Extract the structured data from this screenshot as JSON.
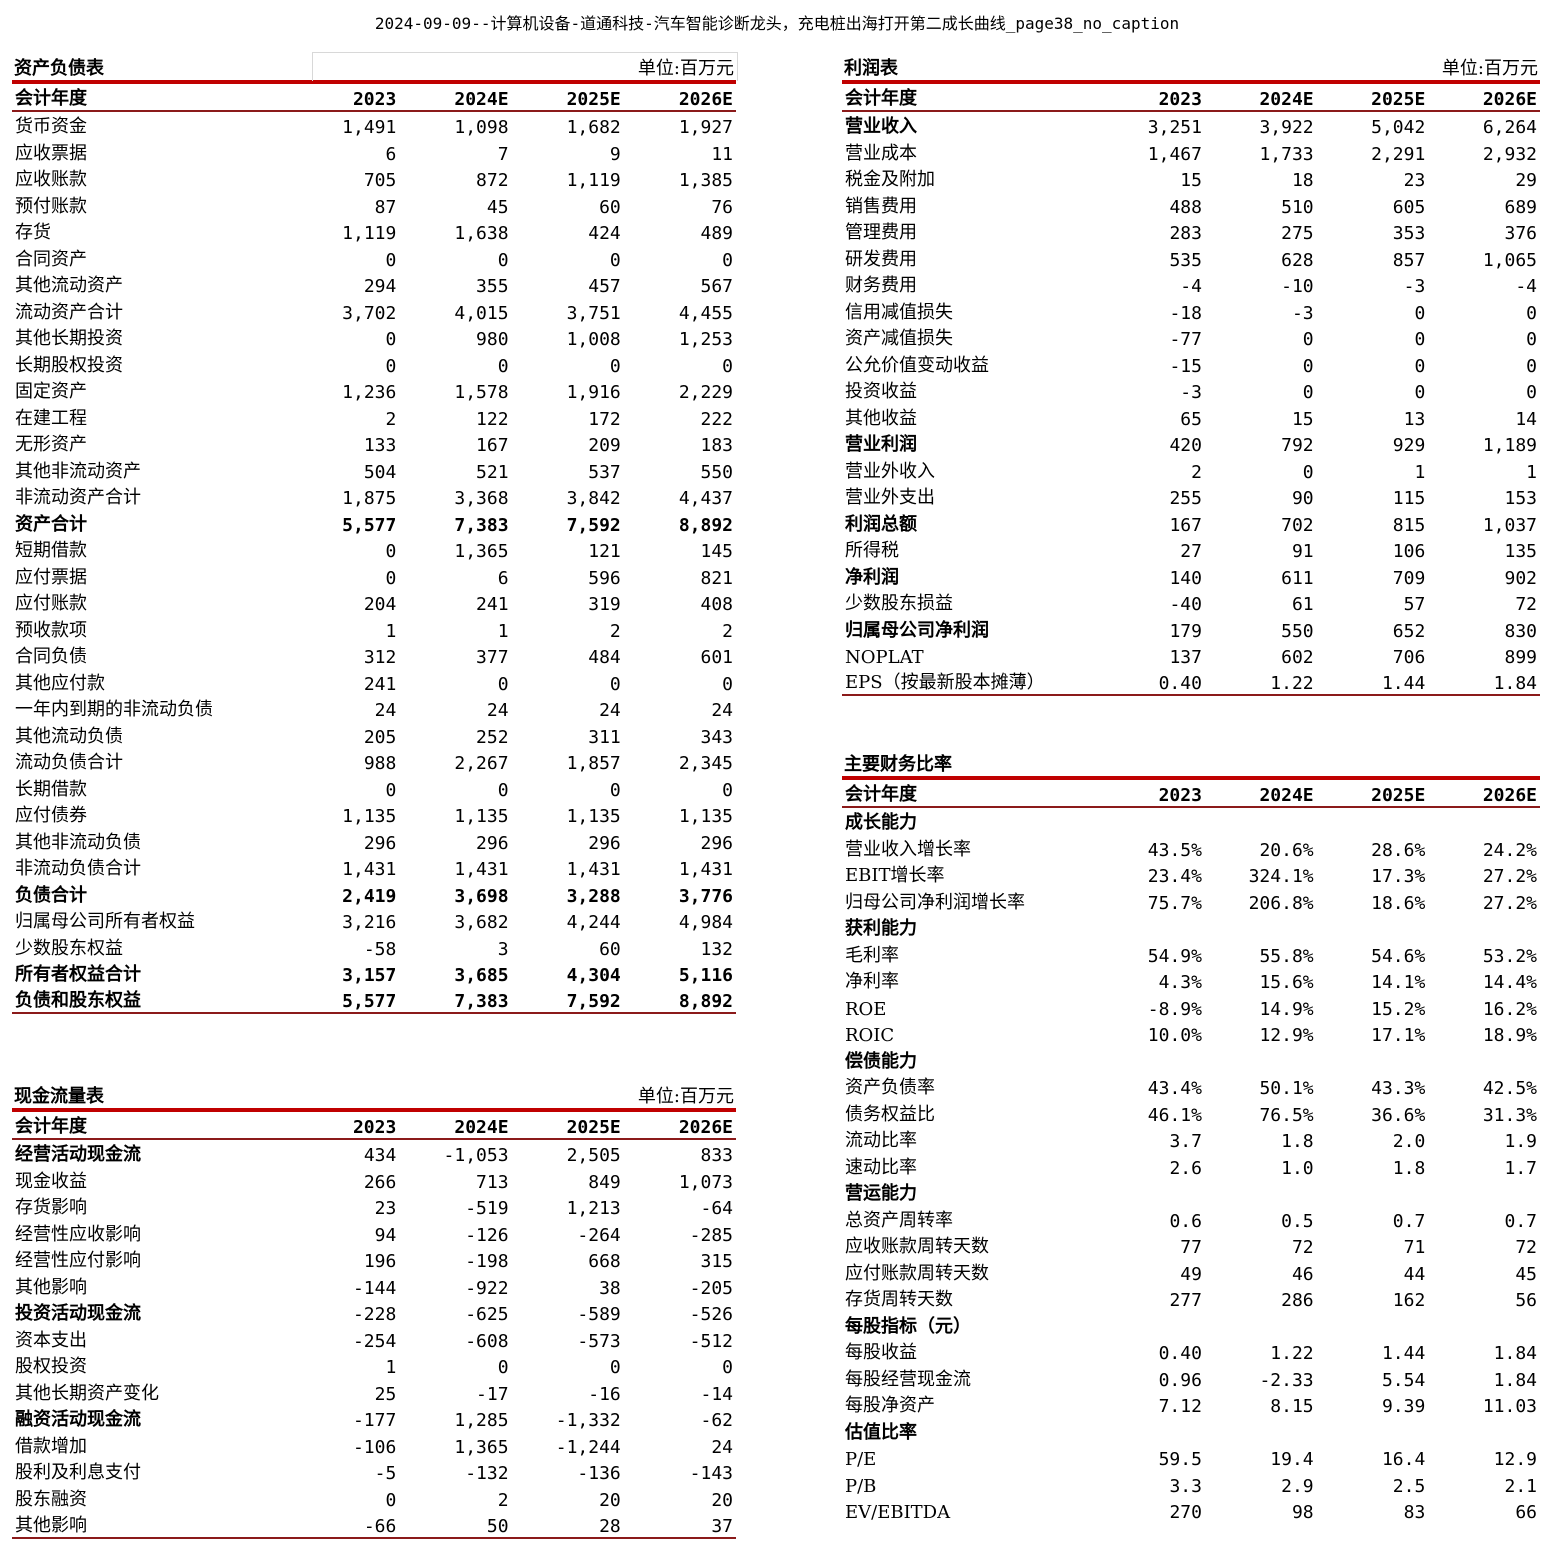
{
  "page_title": "2024-09-09--计算机设备-道通科技-汽车智能诊断龙头，充电桩出海打开第二成长曲线_page38_no_caption",
  "balance": {
    "title": "资产负债表",
    "unit": "单位:百万元",
    "header": [
      "会计年度",
      "2023",
      "2024E",
      "2025E",
      "2026E"
    ],
    "rows": [
      {
        "label": "货币资金",
        "values": [
          "1,491",
          "1,098",
          "1,682",
          "1,927"
        ]
      },
      {
        "label": "应收票据",
        "values": [
          "6",
          "7",
          "9",
          "11"
        ]
      },
      {
        "label": "应收账款",
        "values": [
          "705",
          "872",
          "1,119",
          "1,385"
        ]
      },
      {
        "label": "预付账款",
        "values": [
          "87",
          "45",
          "60",
          "76"
        ]
      },
      {
        "label": "存货",
        "values": [
          "1,119",
          "1,638",
          "424",
          "489"
        ]
      },
      {
        "label": "合同资产",
        "values": [
          "0",
          "0",
          "0",
          "0"
        ]
      },
      {
        "label": "其他流动资产",
        "values": [
          "294",
          "355",
          "457",
          "567"
        ]
      },
      {
        "label": "流动资产合计",
        "values": [
          "3,702",
          "4,015",
          "3,751",
          "4,455"
        ]
      },
      {
        "label": "其他长期投资",
        "values": [
          "0",
          "980",
          "1,008",
          "1,253"
        ]
      },
      {
        "label": "长期股权投资",
        "values": [
          "0",
          "0",
          "0",
          "0"
        ]
      },
      {
        "label": "固定资产",
        "values": [
          "1,236",
          "1,578",
          "1,916",
          "2,229"
        ]
      },
      {
        "label": "在建工程",
        "values": [
          "2",
          "122",
          "172",
          "222"
        ]
      },
      {
        "label": "无形资产",
        "values": [
          "133",
          "167",
          "209",
          "183"
        ]
      },
      {
        "label": "其他非流动资产",
        "values": [
          "504",
          "521",
          "537",
          "550"
        ]
      },
      {
        "label": "非流动资产合计",
        "values": [
          "1,875",
          "3,368",
          "3,842",
          "4,437"
        ]
      },
      {
        "label": "资产合计",
        "values": [
          "5,577",
          "7,383",
          "7,592",
          "8,892"
        ],
        "bold": true
      },
      {
        "label": "短期借款",
        "values": [
          "0",
          "1,365",
          "121",
          "145"
        ]
      },
      {
        "label": "应付票据",
        "values": [
          "0",
          "6",
          "596",
          "821"
        ]
      },
      {
        "label": "应付账款",
        "values": [
          "204",
          "241",
          "319",
          "408"
        ]
      },
      {
        "label": "预收款项",
        "values": [
          "1",
          "1",
          "2",
          "2"
        ]
      },
      {
        "label": "合同负债",
        "values": [
          "312",
          "377",
          "484",
          "601"
        ]
      },
      {
        "label": "其他应付款",
        "values": [
          "241",
          "0",
          "0",
          "0"
        ]
      },
      {
        "label": "一年内到期的非流动负债",
        "values": [
          "24",
          "24",
          "24",
          "24"
        ]
      },
      {
        "label": "其他流动负债",
        "values": [
          "205",
          "252",
          "311",
          "343"
        ]
      },
      {
        "label": "流动负债合计",
        "values": [
          "988",
          "2,267",
          "1,857",
          "2,345"
        ]
      },
      {
        "label": "长期借款",
        "values": [
          "0",
          "0",
          "0",
          "0"
        ]
      },
      {
        "label": "应付债券",
        "values": [
          "1,135",
          "1,135",
          "1,135",
          "1,135"
        ]
      },
      {
        "label": "其他非流动负债",
        "values": [
          "296",
          "296",
          "296",
          "296"
        ]
      },
      {
        "label": "非流动负债合计",
        "values": [
          "1,431",
          "1,431",
          "1,431",
          "1,431"
        ]
      },
      {
        "label": "负债合计",
        "values": [
          "2,419",
          "3,698",
          "3,288",
          "3,776"
        ],
        "bold": true
      },
      {
        "label": "归属母公司所有者权益",
        "values": [
          "3,216",
          "3,682",
          "4,244",
          "4,984"
        ]
      },
      {
        "label": "少数股东权益",
        "values": [
          "-58",
          "3",
          "60",
          "132"
        ]
      },
      {
        "label": "所有者权益合计",
        "values": [
          "3,157",
          "3,685",
          "4,304",
          "5,116"
        ],
        "bold": true
      },
      {
        "label": "负债和股东权益",
        "values": [
          "5,577",
          "7,383",
          "7,592",
          "8,892"
        ],
        "bold": true
      }
    ]
  },
  "cashflow": {
    "title": "现金流量表",
    "unit": "单位:百万元",
    "header": [
      "会计年度",
      "2023",
      "2024E",
      "2025E",
      "2026E"
    ],
    "rows": [
      {
        "label": "经营活动现金流",
        "values": [
          "434",
          "-1,053",
          "2,505",
          "833"
        ],
        "bold_label": true
      },
      {
        "label": "现金收益",
        "values": [
          "266",
          "713",
          "849",
          "1,073"
        ]
      },
      {
        "label": "存货影响",
        "values": [
          "23",
          "-519",
          "1,213",
          "-64"
        ]
      },
      {
        "label": "经营性应收影响",
        "values": [
          "94",
          "-126",
          "-264",
          "-285"
        ]
      },
      {
        "label": "经营性应付影响",
        "values": [
          "196",
          "-198",
          "668",
          "315"
        ]
      },
      {
        "label": "其他影响",
        "values": [
          "-144",
          "-922",
          "38",
          "-205"
        ]
      },
      {
        "label": "投资活动现金流",
        "values": [
          "-228",
          "-625",
          "-589",
          "-526"
        ],
        "bold_label": true
      },
      {
        "label": "资本支出",
        "values": [
          "-254",
          "-608",
          "-573",
          "-512"
        ]
      },
      {
        "label": "股权投资",
        "values": [
          "1",
          "0",
          "0",
          "0"
        ]
      },
      {
        "label": "其他长期资产变化",
        "values": [
          "25",
          "-17",
          "-16",
          "-14"
        ]
      },
      {
        "label": "融资活动现金流",
        "values": [
          "-177",
          "1,285",
          "-1,332",
          "-62"
        ],
        "bold_label": true
      },
      {
        "label": "借款增加",
        "values": [
          "-106",
          "1,365",
          "-1,244",
          "24"
        ]
      },
      {
        "label": "股利及利息支付",
        "values": [
          "-5",
          "-132",
          "-136",
          "-143"
        ]
      },
      {
        "label": "股东融资",
        "values": [
          "0",
          "2",
          "20",
          "20"
        ]
      },
      {
        "label": "其他影响",
        "values": [
          "-66",
          "50",
          "28",
          "37"
        ]
      }
    ]
  },
  "income": {
    "title": "利润表",
    "unit": "单位:百万元",
    "header": [
      "会计年度",
      "2023",
      "2024E",
      "2025E",
      "2026E"
    ],
    "rows": [
      {
        "label": "营业收入",
        "values": [
          "3,251",
          "3,922",
          "5,042",
          "6,264"
        ],
        "bold_label": true
      },
      {
        "label": "营业成本",
        "values": [
          "1,467",
          "1,733",
          "2,291",
          "2,932"
        ]
      },
      {
        "label": "税金及附加",
        "values": [
          "15",
          "18",
          "23",
          "29"
        ]
      },
      {
        "label": "销售费用",
        "values": [
          "488",
          "510",
          "605",
          "689"
        ]
      },
      {
        "label": "管理费用",
        "values": [
          "283",
          "275",
          "353",
          "376"
        ]
      },
      {
        "label": "研发费用",
        "values": [
          "535",
          "628",
          "857",
          "1,065"
        ]
      },
      {
        "label": "财务费用",
        "values": [
          "-4",
          "-10",
          "-3",
          "-4"
        ]
      },
      {
        "label": "信用减值损失",
        "values": [
          "-18",
          "-3",
          "0",
          "0"
        ]
      },
      {
        "label": "资产减值损失",
        "values": [
          "-77",
          "0",
          "0",
          "0"
        ]
      },
      {
        "label": "公允价值变动收益",
        "values": [
          "-15",
          "0",
          "0",
          "0"
        ]
      },
      {
        "label": "投资收益",
        "values": [
          "-3",
          "0",
          "0",
          "0"
        ]
      },
      {
        "label": "其他收益",
        "values": [
          "65",
          "15",
          "13",
          "14"
        ]
      },
      {
        "label": "营业利润",
        "values": [
          "420",
          "792",
          "929",
          "1,189"
        ],
        "bold_label": true
      },
      {
        "label": "营业外收入",
        "values": [
          "2",
          "0",
          "1",
          "1"
        ]
      },
      {
        "label": "营业外支出",
        "values": [
          "255",
          "90",
          "115",
          "153"
        ]
      },
      {
        "label": "利润总额",
        "values": [
          "167",
          "702",
          "815",
          "1,037"
        ],
        "bold_label": true
      },
      {
        "label": "所得税",
        "values": [
          "27",
          "91",
          "106",
          "135"
        ]
      },
      {
        "label": "净利润",
        "values": [
          "140",
          "611",
          "709",
          "902"
        ],
        "bold_label": true
      },
      {
        "label": "少数股东损益",
        "values": [
          "-40",
          "61",
          "57",
          "72"
        ]
      },
      {
        "label": "归属母公司净利润",
        "values": [
          "179",
          "550",
          "652",
          "830"
        ],
        "bold_label": true
      },
      {
        "label": "NOPLAT",
        "values": [
          "137",
          "602",
          "706",
          "899"
        ]
      },
      {
        "label": "EPS（按最新股本摊薄）",
        "values": [
          "0.40",
          "1.22",
          "1.44",
          "1.84"
        ]
      }
    ]
  },
  "ratios": {
    "title": "主要财务比率",
    "header": [
      "会计年度",
      "2023",
      "2024E",
      "2025E",
      "2026E"
    ],
    "rows": [
      {
        "label": "成长能力",
        "values": [
          "",
          "",
          "",
          ""
        ],
        "category": true
      },
      {
        "label": "营业收入增长率",
        "values": [
          "43.5%",
          "20.6%",
          "28.6%",
          "24.2%"
        ]
      },
      {
        "label": "EBIT增长率",
        "values": [
          "23.4%",
          "324.1%",
          "17.3%",
          "27.2%"
        ]
      },
      {
        "label": "归母公司净利润增长率",
        "values": [
          "75.7%",
          "206.8%",
          "18.6%",
          "27.2%"
        ]
      },
      {
        "label": "获利能力",
        "values": [
          "",
          "",
          "",
          ""
        ],
        "category": true
      },
      {
        "label": "毛利率",
        "values": [
          "54.9%",
          "55.8%",
          "54.6%",
          "53.2%"
        ]
      },
      {
        "label": "净利率",
        "values": [
          "4.3%",
          "15.6%",
          "14.1%",
          "14.4%"
        ]
      },
      {
        "label": "ROE",
        "values": [
          "-8.9%",
          "14.9%",
          "15.2%",
          "16.2%"
        ]
      },
      {
        "label": "ROIC",
        "values": [
          "10.0%",
          "12.9%",
          "17.1%",
          "18.9%"
        ]
      },
      {
        "label": "偿债能力",
        "values": [
          "",
          "",
          "",
          ""
        ],
        "category": true
      },
      {
        "label": "资产负债率",
        "values": [
          "43.4%",
          "50.1%",
          "43.3%",
          "42.5%"
        ]
      },
      {
        "label": "债务权益比",
        "values": [
          "46.1%",
          "76.5%",
          "36.6%",
          "31.3%"
        ]
      },
      {
        "label": "流动比率",
        "values": [
          "3.7",
          "1.8",
          "2.0",
          "1.9"
        ]
      },
      {
        "label": "速动比率",
        "values": [
          "2.6",
          "1.0",
          "1.8",
          "1.7"
        ]
      },
      {
        "label": "营运能力",
        "values": [
          "",
          "",
          "",
          ""
        ],
        "category": true
      },
      {
        "label": "总资产周转率",
        "values": [
          "0.6",
          "0.5",
          "0.7",
          "0.7"
        ]
      },
      {
        "label": "应收账款周转天数",
        "values": [
          "77",
          "72",
          "71",
          "72"
        ]
      },
      {
        "label": "应付账款周转天数",
        "values": [
          "49",
          "46",
          "44",
          "45"
        ]
      },
      {
        "label": "存货周转天数",
        "values": [
          "277",
          "286",
          "162",
          "56"
        ]
      },
      {
        "label": "每股指标（元）",
        "values": [
          "",
          "",
          "",
          ""
        ],
        "category": true
      },
      {
        "label": "每股收益",
        "values": [
          "0.40",
          "1.22",
          "1.44",
          "1.84"
        ]
      },
      {
        "label": "每股经营现金流",
        "values": [
          "0.96",
          "-2.33",
          "5.54",
          "1.84"
        ]
      },
      {
        "label": "每股净资产",
        "values": [
          "7.12",
          "8.15",
          "9.39",
          "11.03"
        ]
      },
      {
        "label": "估值比率",
        "values": [
          "",
          "",
          "",
          ""
        ],
        "category": true
      },
      {
        "label": "P/E",
        "values": [
          "59.5",
          "19.4",
          "16.4",
          "12.9"
        ]
      },
      {
        "label": "P/B",
        "values": [
          "3.3",
          "2.9",
          "2.5",
          "2.1"
        ]
      },
      {
        "label": "EV/EBITDA",
        "values": [
          "270",
          "98",
          "83",
          "66"
        ]
      }
    ]
  }
}
